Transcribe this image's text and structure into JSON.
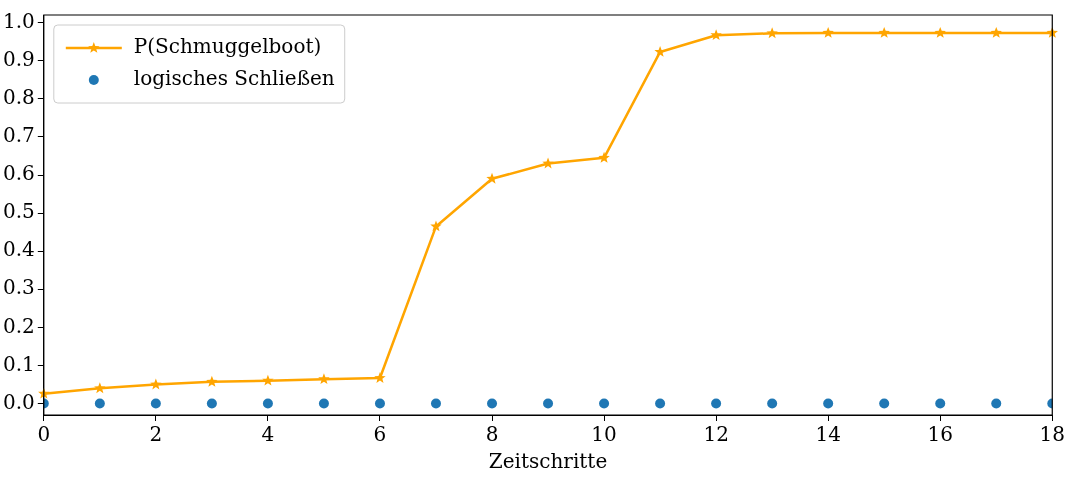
{
  "chart_data": {
    "type": "line",
    "xlabel": "Zeitschritte",
    "x": [
      0,
      1,
      2,
      3,
      4,
      5,
      6,
      7,
      8,
      9,
      10,
      11,
      12,
      13,
      14,
      15,
      16,
      17,
      18
    ],
    "series": [
      {
        "name": "P(Schmuggelboot)",
        "color": "#ffa500",
        "marker": "star",
        "values": [
          0.026,
          0.04,
          0.05,
          0.057,
          0.06,
          0.064,
          0.067,
          0.465,
          0.59,
          0.63,
          0.645,
          0.923,
          0.967,
          0.972,
          0.973,
          0.973,
          0.973,
          0.973,
          0.973
        ]
      },
      {
        "name": "logisches Schließen",
        "type": "scatter",
        "color": "#1f77b4",
        "marker": "circle",
        "values": [
          0,
          0,
          0,
          0,
          0,
          0,
          0,
          0,
          0,
          0,
          0,
          0,
          0,
          0,
          0,
          0,
          0,
          0,
          0
        ]
      }
    ],
    "xlim": [
      0,
      18
    ],
    "xticks": [
      0,
      2,
      4,
      6,
      8,
      10,
      12,
      14,
      16,
      18
    ],
    "ylim": [
      -0.03,
      1.02
    ],
    "yticks": [
      {
        "value": 0,
        "label": "0.0"
      },
      {
        "value": 0.1,
        "label": "0.1"
      },
      {
        "value": 0.2,
        "label": "0.2"
      },
      {
        "value": 0.3,
        "label": "0.3"
      },
      {
        "value": 0.4,
        "label": "0.4"
      },
      {
        "value": 0.5,
        "label": "0.5"
      },
      {
        "value": 0.6,
        "label": "0.6"
      },
      {
        "value": 0.7,
        "label": "0.7"
      },
      {
        "value": 0.8,
        "label": "0.8"
      },
      {
        "value": 0.9,
        "label": "0.9"
      },
      {
        "value": 1,
        "label": "1.0"
      }
    ],
    "grid": false,
    "legend": "top left"
  }
}
